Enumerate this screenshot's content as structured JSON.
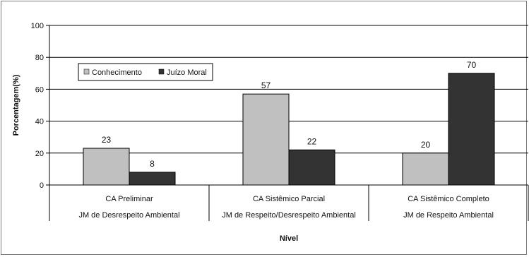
{
  "chart_data": {
    "type": "bar",
    "ylabel": "Porcentagem(%)",
    "xlabel": "Nível",
    "ylim": [
      0,
      100
    ],
    "yticks": [
      0,
      20,
      40,
      60,
      80,
      100
    ],
    "grid": true,
    "legend_position": "top-left",
    "categories": [
      {
        "line1": "CA Preliminar",
        "line2": "JM de Desrespeito Ambiental"
      },
      {
        "line1": "CA Sistêmico Parcial",
        "line2": "JM de Respeito/Desrespeito Ambiental"
      },
      {
        "line1": "CA Sistêmico Completo",
        "line2": "JM de Respeito Ambiental"
      }
    ],
    "series": [
      {
        "name": "Conhecimento",
        "color": "#c0c0c0",
        "values": [
          23,
          57,
          20
        ]
      },
      {
        "name": "Juízo Moral",
        "color": "#333333",
        "values": [
          8,
          22,
          70
        ]
      }
    ]
  }
}
